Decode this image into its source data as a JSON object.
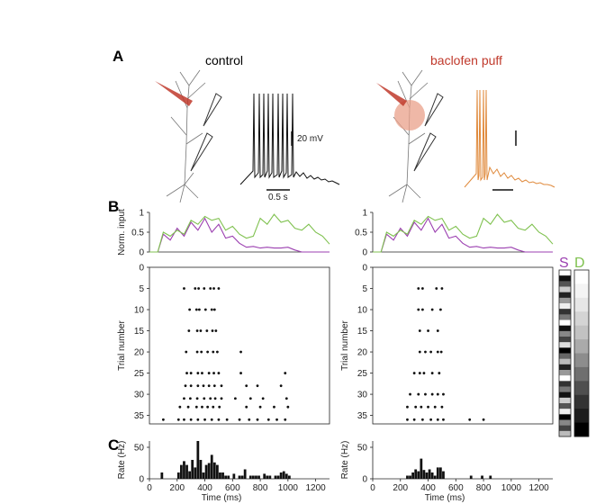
{
  "figure": {
    "panel_a": "A",
    "panel_b": "B",
    "panel_c": "C",
    "conditions": [
      {
        "title": "control",
        "color": "#111111"
      },
      {
        "title": "baclofen puff",
        "color": "#c0392b"
      }
    ],
    "scalebars": {
      "voltage": "20 mV",
      "time": "0.5 s"
    },
    "legend_S": {
      "label": "S",
      "color": "#9b3fb0"
    },
    "legend_D": {
      "label": "D",
      "color": "#7fc14f"
    },
    "trace_colors": {
      "control": "#111111",
      "baclofen": "#e08a3c"
    },
    "raster_ylabel": "Trial number",
    "input_ylabel": "Norm. input",
    "rate_ylabel": "Rate (Hz)",
    "xlabel": "Time (ms)"
  },
  "chart_data": [
    {
      "type": "line",
      "title": "",
      "ylabel": "Norm. input",
      "xlim": [
        0,
        1300
      ],
      "ylim": [
        0,
        1
      ],
      "yticks": [
        0,
        0.5,
        1
      ],
      "xticks": [],
      "series": [
        {
          "name": "S",
          "color": "#9b3fb0",
          "x": [
            0,
            60,
            100,
            150,
            200,
            250,
            300,
            350,
            400,
            450,
            500,
            550,
            600,
            650,
            700,
            750,
            800,
            850,
            900,
            950,
            1000,
            1050,
            1100,
            1200,
            1300
          ],
          "values": [
            0,
            0,
            0.45,
            0.3,
            0.6,
            0.4,
            0.75,
            0.55,
            0.85,
            0.5,
            0.7,
            0.35,
            0.4,
            0.22,
            0.12,
            0.14,
            0.1,
            0.12,
            0.1,
            0.1,
            0.12,
            0.05,
            0,
            0,
            0
          ]
        },
        {
          "name": "D",
          "color": "#7fc14f",
          "x": [
            0,
            60,
            100,
            150,
            200,
            250,
            300,
            350,
            400,
            450,
            500,
            550,
            600,
            650,
            700,
            750,
            800,
            850,
            900,
            950,
            1000,
            1050,
            1100,
            1150,
            1200,
            1250,
            1300
          ],
          "values": [
            0,
            0,
            0.5,
            0.4,
            0.55,
            0.45,
            0.8,
            0.7,
            0.9,
            0.8,
            0.85,
            0.55,
            0.65,
            0.45,
            0.35,
            0.4,
            0.85,
            0.7,
            0.95,
            0.75,
            0.8,
            0.6,
            0.55,
            0.7,
            0.5,
            0.4,
            0.2
          ]
        }
      ]
    },
    {
      "type": "line",
      "title": "",
      "ylabel": "",
      "xlim": [
        0,
        1300
      ],
      "ylim": [
        0,
        1
      ],
      "yticks": [
        0,
        0.5,
        1
      ],
      "xticks": [],
      "series": [
        {
          "name": "S",
          "color": "#9b3fb0",
          "x": [
            0,
            60,
            100,
            150,
            200,
            250,
            300,
            350,
            400,
            450,
            500,
            550,
            600,
            650,
            700,
            750,
            800,
            850,
            900,
            950,
            1000,
            1050,
            1100,
            1200,
            1300
          ],
          "values": [
            0,
            0,
            0.45,
            0.3,
            0.6,
            0.4,
            0.75,
            0.55,
            0.85,
            0.5,
            0.7,
            0.35,
            0.4,
            0.22,
            0.12,
            0.14,
            0.1,
            0.12,
            0.1,
            0.1,
            0.12,
            0.05,
            0,
            0,
            0
          ]
        },
        {
          "name": "D",
          "color": "#7fc14f",
          "x": [
            0,
            60,
            100,
            150,
            200,
            250,
            300,
            350,
            400,
            450,
            500,
            550,
            600,
            650,
            700,
            750,
            800,
            850,
            900,
            950,
            1000,
            1050,
            1100,
            1150,
            1200,
            1250,
            1300
          ],
          "values": [
            0,
            0,
            0.5,
            0.4,
            0.55,
            0.45,
            0.8,
            0.7,
            0.9,
            0.8,
            0.85,
            0.55,
            0.65,
            0.45,
            0.35,
            0.4,
            0.85,
            0.7,
            0.95,
            0.75,
            0.8,
            0.6,
            0.55,
            0.7,
            0.5,
            0.4,
            0.2
          ]
        }
      ]
    },
    {
      "type": "scatter",
      "title": "",
      "ylabel": "Trial number",
      "xlim": [
        0,
        1300
      ],
      "ylim": [
        0,
        37
      ],
      "yinverted": true,
      "yticks": [
        0,
        5,
        10,
        15,
        20,
        25,
        30,
        35
      ],
      "xticks": [],
      "points": [
        [
          250,
          5
        ],
        [
          330,
          5
        ],
        [
          355,
          5
        ],
        [
          395,
          5
        ],
        [
          440,
          5
        ],
        [
          465,
          5
        ],
        [
          500,
          5
        ],
        [
          290,
          10
        ],
        [
          340,
          10
        ],
        [
          360,
          10
        ],
        [
          405,
          10
        ],
        [
          450,
          10
        ],
        [
          470,
          10
        ],
        [
          285,
          15
        ],
        [
          345,
          15
        ],
        [
          370,
          15
        ],
        [
          415,
          15
        ],
        [
          455,
          15
        ],
        [
          480,
          15
        ],
        [
          265,
          20
        ],
        [
          345,
          20
        ],
        [
          375,
          20
        ],
        [
          420,
          20
        ],
        [
          460,
          20
        ],
        [
          490,
          20
        ],
        [
          660,
          20
        ],
        [
          270,
          25
        ],
        [
          300,
          25
        ],
        [
          350,
          25
        ],
        [
          380,
          25
        ],
        [
          430,
          25
        ],
        [
          465,
          25
        ],
        [
          500,
          25
        ],
        [
          660,
          25
        ],
        [
          980,
          25
        ],
        [
          260,
          28
        ],
        [
          300,
          28
        ],
        [
          350,
          28
        ],
        [
          390,
          28
        ],
        [
          430,
          28
        ],
        [
          470,
          28
        ],
        [
          520,
          28
        ],
        [
          700,
          28
        ],
        [
          780,
          28
        ],
        [
          950,
          28
        ],
        [
          250,
          31
        ],
        [
          295,
          31
        ],
        [
          345,
          31
        ],
        [
          395,
          31
        ],
        [
          440,
          31
        ],
        [
          475,
          31
        ],
        [
          520,
          31
        ],
        [
          620,
          31
        ],
        [
          730,
          31
        ],
        [
          820,
          31
        ],
        [
          990,
          31
        ],
        [
          220,
          33
        ],
        [
          280,
          33
        ],
        [
          340,
          33
        ],
        [
          380,
          33
        ],
        [
          420,
          33
        ],
        [
          460,
          33
        ],
        [
          505,
          33
        ],
        [
          700,
          33
        ],
        [
          800,
          33
        ],
        [
          900,
          33
        ],
        [
          1000,
          33
        ],
        [
          100,
          36
        ],
        [
          210,
          36
        ],
        [
          250,
          36
        ],
        [
          300,
          36
        ],
        [
          350,
          36
        ],
        [
          400,
          36
        ],
        [
          450,
          36
        ],
        [
          500,
          36
        ],
        [
          560,
          36
        ],
        [
          650,
          36
        ],
        [
          720,
          36
        ],
        [
          780,
          36
        ],
        [
          860,
          36
        ],
        [
          920,
          36
        ],
        [
          980,
          36
        ]
      ]
    },
    {
      "type": "scatter",
      "title": "",
      "ylabel": "Trial number",
      "xlim": [
        0,
        1300
      ],
      "ylim": [
        0,
        37
      ],
      "yinverted": true,
      "yticks": [
        0,
        5,
        10,
        15,
        20,
        25,
        30,
        35
      ],
      "xticks": [],
      "points": [
        [
          330,
          5
        ],
        [
          360,
          5
        ],
        [
          460,
          5
        ],
        [
          500,
          5
        ],
        [
          330,
          10
        ],
        [
          360,
          10
        ],
        [
          430,
          10
        ],
        [
          490,
          10
        ],
        [
          340,
          15
        ],
        [
          400,
          15
        ],
        [
          470,
          15
        ],
        [
          340,
          20
        ],
        [
          380,
          20
        ],
        [
          420,
          20
        ],
        [
          470,
          20
        ],
        [
          495,
          20
        ],
        [
          300,
          25
        ],
        [
          340,
          25
        ],
        [
          370,
          25
        ],
        [
          430,
          25
        ],
        [
          480,
          25
        ],
        [
          270,
          30
        ],
        [
          330,
          30
        ],
        [
          380,
          30
        ],
        [
          430,
          30
        ],
        [
          470,
          30
        ],
        [
          510,
          30
        ],
        [
          250,
          33
        ],
        [
          310,
          33
        ],
        [
          350,
          33
        ],
        [
          400,
          33
        ],
        [
          450,
          33
        ],
        [
          500,
          33
        ],
        [
          250,
          36
        ],
        [
          300,
          36
        ],
        [
          360,
          36
        ],
        [
          420,
          36
        ],
        [
          470,
          36
        ],
        [
          510,
          36
        ],
        [
          700,
          36
        ],
        [
          800,
          36
        ]
      ]
    },
    {
      "type": "bar",
      "title": "",
      "ylabel": "Rate (Hz)",
      "xlabel": "Time (ms)",
      "xlim": [
        0,
        1300
      ],
      "ylim": [
        0,
        60
      ],
      "yticks": [
        0,
        50
      ],
      "xticks": [
        0,
        200,
        400,
        600,
        800,
        1000,
        1200
      ],
      "x": [
        90,
        210,
        230,
        250,
        270,
        290,
        310,
        330,
        350,
        370,
        390,
        410,
        430,
        450,
        470,
        490,
        510,
        530,
        550,
        570,
        610,
        650,
        670,
        690,
        730,
        750,
        770,
        790,
        830,
        850,
        870,
        910,
        930,
        950,
        970,
        990,
        1010
      ],
      "values": [
        10,
        10,
        22,
        28,
        22,
        12,
        30,
        18,
        60,
        30,
        10,
        22,
        25,
        38,
        26,
        22,
        10,
        10,
        5,
        5,
        8,
        5,
        5,
        15,
        5,
        5,
        5,
        5,
        8,
        5,
        5,
        5,
        5,
        10,
        12,
        8,
        5
      ]
    },
    {
      "type": "bar",
      "title": "",
      "ylabel": "Rate (Hz)",
      "xlabel": "Time (ms)",
      "xlim": [
        0,
        1300
      ],
      "ylim": [
        0,
        60
      ],
      "yticks": [
        0,
        50
      ],
      "xticks": [
        0,
        200,
        400,
        600,
        800,
        1000,
        1200
      ],
      "x": [
        250,
        270,
        290,
        310,
        330,
        350,
        370,
        390,
        410,
        430,
        450,
        470,
        490,
        510,
        710,
        790,
        850
      ],
      "values": [
        5,
        5,
        10,
        15,
        12,
        32,
        14,
        10,
        15,
        10,
        5,
        18,
        18,
        12,
        5,
        5,
        5
      ]
    }
  ]
}
